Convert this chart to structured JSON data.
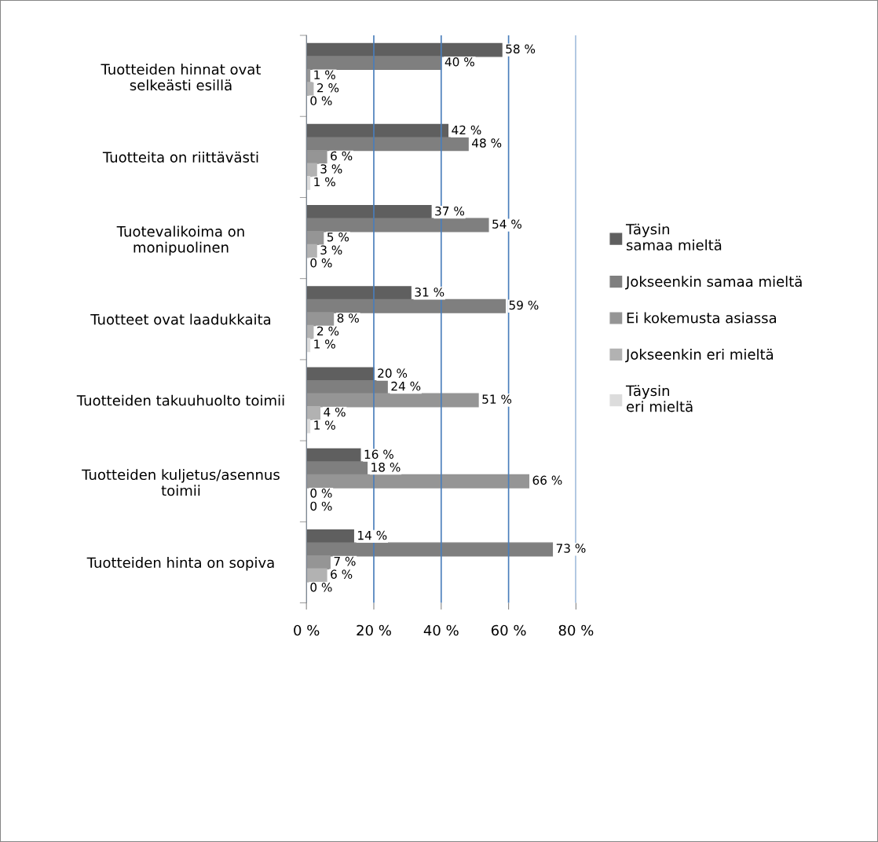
{
  "chart_data": {
    "type": "bar",
    "orientation": "horizontal",
    "categories": [
      "Tuotteiden hinnat ovat\nselkeästi esillä",
      "Tuotteita on riittävästi",
      "Tuotevalikoima on\nmonipuolinen",
      "Tuotteet ovat laadukkaita",
      "Tuotteiden takuuhuolto toimii",
      "Tuotteiden kuljetus/asennus\ntoimii",
      "Tuotteiden hinta on sopiva"
    ],
    "series": [
      {
        "name": "Täysin\nsamaa mieltä",
        "color": "#5f5f5f",
        "values": [
          58,
          42,
          37,
          31,
          20,
          16,
          14
        ],
        "value_labels": [
          "58 %",
          "42 %",
          "37 %",
          "31 %",
          "20 %",
          "16 %",
          "14 %"
        ]
      },
      {
        "name": "Jokseenkin samaa mieltä",
        "color": "#7f7f7f",
        "values": [
          40,
          48,
          54,
          59,
          24,
          18,
          73
        ],
        "value_labels": [
          "40 %",
          "48 %",
          "54 %",
          "59 %",
          "24 %",
          "18 %",
          "73 %"
        ]
      },
      {
        "name": "Ei kokemusta asiassa",
        "color": "#959595",
        "values": [
          1,
          6,
          5,
          8,
          51,
          66,
          7
        ],
        "value_labels": [
          "1 %",
          "6 %",
          "5 %",
          "8 %",
          "51 %",
          "66 %",
          "7 %"
        ]
      },
      {
        "name": "Jokseenkin eri mieltä",
        "color": "#b2b2b2",
        "values": [
          2,
          3,
          3,
          2,
          4,
          0,
          6
        ],
        "value_labels": [
          "2 %",
          "3 %",
          "3 %",
          "2 %",
          "4 %",
          "0 %",
          "6 %"
        ]
      },
      {
        "name": "Täysin\neri mieltä",
        "color": "#dcdcdc",
        "values": [
          0,
          1,
          0,
          1,
          1,
          0,
          0
        ],
        "value_labels": [
          "0 %",
          "1 %",
          "0 %",
          "1 %",
          "1 %",
          "0 %",
          "0 %"
        ]
      }
    ],
    "xlim": [
      0,
      80
    ],
    "xticks": [
      {
        "value": 0,
        "label": "0 %"
      },
      {
        "value": 20,
        "label": "20 %"
      },
      {
        "value": 40,
        "label": "40 %"
      },
      {
        "value": 60,
        "label": "60 %"
      },
      {
        "value": 80,
        "label": "80 %"
      }
    ],
    "grid": "x",
    "legend": "right"
  }
}
